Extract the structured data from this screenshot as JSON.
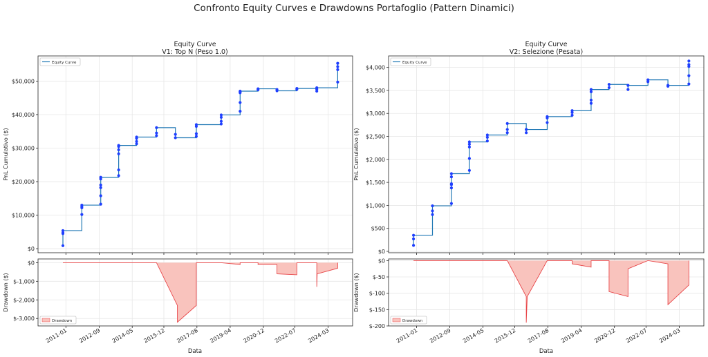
{
  "suptitle": "Confronto Equity Curves e Drawdowns Portafoglio (Pattern Dinamici)",
  "x_axis": {
    "label": "Data",
    "ticks": [
      {
        "label": "2011-01",
        "t": 2011.0
      },
      {
        "label": "2012-09",
        "t": 2012.67
      },
      {
        "label": "2014-05",
        "t": 2014.33
      },
      {
        "label": "2015-12",
        "t": 2015.92
      },
      {
        "label": "2017-08",
        "t": 2017.58
      },
      {
        "label": "2019-04",
        "t": 2019.25
      },
      {
        "label": "2020-12",
        "t": 2020.92
      },
      {
        "label": "2022-07",
        "t": 2022.5
      },
      {
        "label": "2024-03",
        "t": 2024.17
      }
    ],
    "range": [
      2009.6,
      2025.4
    ]
  },
  "colors": {
    "equity": "#1f77b4",
    "points": "#1f3fff",
    "drawdown_fill": "#f9c3bd",
    "drawdown_line": "#e8474a"
  },
  "chart_data": [
    {
      "type": "line",
      "title": "Equity Curve",
      "subtitle": "V1: Top N (Peso 1.0)",
      "ylabel": "PnL Cumulativo ($)",
      "legend": {
        "label": "Equity Curve",
        "position": "top-left"
      },
      "ylim": [
        -1200,
        57500
      ],
      "yticks": [
        0,
        10000,
        20000,
        30000,
        40000,
        50000
      ],
      "ytick_labels": [
        "$0",
        "$10,000",
        "$20,000",
        "$30,000",
        "$40,000",
        "$50,000"
      ],
      "grid": true,
      "series": [
        {
          "name": "Equity Curve",
          "type": "step",
          "x": [
            2010.85,
            2010.85,
            2010.85,
            2010.85,
            2011.8,
            2011.8,
            2011.8,
            2011.8,
            2012.75,
            2012.75,
            2012.75,
            2012.75,
            2012.75,
            2012.75,
            2013.65,
            2013.65,
            2013.65,
            2013.65,
            2013.65,
            2013.65,
            2014.55,
            2014.55,
            2014.55,
            2014.55,
            2015.55,
            2015.55,
            2015.55,
            2016.5,
            2016.5,
            2017.55,
            2017.55,
            2017.55,
            2017.55,
            2018.8,
            2018.8,
            2018.8,
            2018.8,
            2019.75,
            2019.75,
            2019.75,
            2019.75,
            2019.75,
            2020.65,
            2020.65,
            2021.6,
            2021.6,
            2022.6,
            2022.6,
            2023.6,
            2023.6,
            2023.6,
            2024.65,
            2024.65,
            2024.65,
            2024.65,
            2024.65
          ],
          "y": [
            900,
            4500,
            4800,
            5400,
            10200,
            12200,
            12600,
            13000,
            13300,
            15800,
            18200,
            19000,
            20800,
            21300,
            21800,
            23500,
            28300,
            29500,
            30500,
            30800,
            31300,
            32000,
            32900,
            33300,
            33700,
            34500,
            36100,
            34100,
            33100,
            33500,
            34300,
            36500,
            37000,
            37200,
            38000,
            39200,
            39900,
            41000,
            43600,
            46500,
            46800,
            47000,
            47400,
            47700,
            47500,
            47100,
            47500,
            47800,
            47000,
            47600,
            48000,
            49700,
            53400,
            54300,
            55300,
            55300
          ]
        }
      ]
    },
    {
      "type": "area",
      "ylabel": "Drawdown ($)",
      "legend": {
        "label": "Drawdown",
        "position": "bottom-left"
      },
      "ylim": [
        -3400,
        200
      ],
      "yticks": [
        0,
        -1000,
        -2000,
        -3000
      ],
      "ytick_labels": [
        "$0",
        "$-1,000",
        "$-2,000",
        "$-3,000"
      ],
      "grid": true,
      "series": [
        {
          "name": "Drawdown",
          "x": [
            2010.85,
            2015.55,
            2016.6,
            2016.6,
            2017.55,
            2017.55,
            2018.8,
            2019.75,
            2019.75,
            2020.65,
            2020.65,
            2021.6,
            2021.6,
            2022.6,
            2022.6,
            2023.6,
            2023.6,
            2023.62,
            2024.65,
            2024.65
          ],
          "y": [
            0,
            0,
            -2300,
            -3200,
            -2300,
            0,
            0,
            -100,
            0,
            0,
            -100,
            -100,
            -600,
            -650,
            0,
            0,
            -1300,
            -600,
            -300,
            0
          ]
        }
      ]
    },
    {
      "type": "line",
      "title": "Equity Curve",
      "subtitle": "V2: Selezione (Pesata)",
      "ylabel": "PnL Cumulativo ($)",
      "legend": {
        "label": "Equity Curve",
        "position": "top-left"
      },
      "ylim": [
        -30,
        4250
      ],
      "yticks": [
        0,
        500,
        1000,
        1500,
        2000,
        2500,
        3000,
        3500,
        4000
      ],
      "ytick_labels": [
        "$0",
        "$500",
        "$1,000",
        "$1,500",
        "$2,000",
        "$2,500",
        "$3,000",
        "$3,500",
        "$4,000"
      ],
      "grid": true,
      "series": [
        {
          "name": "Equity Curve",
          "type": "step",
          "x": [
            2010.85,
            2010.85,
            2010.85,
            2011.8,
            2011.8,
            2011.8,
            2012.75,
            2012.75,
            2012.75,
            2012.75,
            2012.75,
            2012.75,
            2013.65,
            2013.65,
            2013.65,
            2013.65,
            2013.65,
            2014.55,
            2014.55,
            2014.55,
            2015.55,
            2015.55,
            2015.55,
            2016.5,
            2016.5,
            2016.5,
            2017.55,
            2017.55,
            2017.55,
            2018.8,
            2018.8,
            2018.8,
            2019.75,
            2019.75,
            2019.75,
            2019.75,
            2020.65,
            2020.65,
            2021.6,
            2021.6,
            2022.6,
            2022.6,
            2023.6,
            2023.6,
            2024.65,
            2024.65,
            2024.65,
            2024.65,
            2024.65
          ],
          "y": [
            130,
            270,
            350,
            800,
            880,
            990,
            1040,
            1380,
            1450,
            1470,
            1620,
            1690,
            1760,
            2020,
            2270,
            2330,
            2380,
            2400,
            2480,
            2530,
            2580,
            2650,
            2780,
            2650,
            2580,
            2650,
            2800,
            2900,
            2930,
            2960,
            3020,
            3060,
            3220,
            3290,
            3470,
            3520,
            3560,
            3630,
            3520,
            3610,
            3690,
            3730,
            3590,
            3610,
            3640,
            3820,
            4020,
            4060,
            4140
          ]
        }
      ]
    },
    {
      "type": "area",
      "ylabel": "Drawdown ($)",
      "legend": {
        "label": "Drawdown",
        "position": "bottom-left"
      },
      "ylim": [
        -200,
        5
      ],
      "yticks": [
        0,
        -50,
        -100,
        -150,
        -200
      ],
      "ytick_labels": [
        "$0",
        "$-50",
        "$-100",
        "$-150",
        "$-200"
      ],
      "grid": true,
      "series": [
        {
          "name": "Drawdown",
          "x": [
            2010.85,
            2015.55,
            2016.5,
            2016.5,
            2016.55,
            2017.55,
            2018.8,
            2018.8,
            2019.75,
            2019.75,
            2020.65,
            2020.65,
            2021.6,
            2021.6,
            2022.6,
            2023.6,
            2023.6,
            2024.65,
            2024.65
          ],
          "y": [
            0,
            0,
            -110,
            -190,
            -110,
            0,
            0,
            -10,
            -20,
            0,
            0,
            -95,
            -110,
            -25,
            0,
            -10,
            -135,
            -75,
            0
          ]
        }
      ]
    }
  ]
}
